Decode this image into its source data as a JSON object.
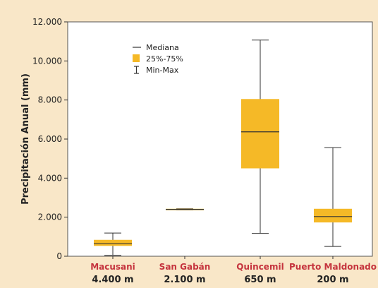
{
  "colors": {
    "background": "#f9e7c8",
    "plot_area": "#ffffff",
    "box_fill": "#f5b927",
    "category_label": "#c5343e",
    "text": "#222222",
    "line": "#333333"
  },
  "legend": {
    "median_label": "Mediana",
    "iqr_label": "25%-75%",
    "range_label": "Min-Max"
  },
  "chart_data": {
    "type": "box",
    "ylabel": "Precipitación Anual (mm)",
    "xlabel": "",
    "ylim": [
      0,
      12000
    ],
    "ytick_values": [
      0,
      2000,
      4000,
      6000,
      8000,
      10000,
      12000
    ],
    "ytick_labels": [
      "0",
      "2.000",
      "4.000",
      "6.000",
      "8.000",
      "10.000",
      "12.000"
    ],
    "grid": false,
    "legend_position": "top-left",
    "categories": [
      "Macusani",
      "San Gabán",
      "Quincemil",
      "Puerto Maldonado"
    ],
    "elevations": [
      "4.400 m",
      "2.100 m",
      "650 m",
      "200 m"
    ],
    "boxes": [
      {
        "min": 50,
        "q1": 530,
        "median": 640,
        "q3": 840,
        "max": 1190
      },
      {
        "min": 2370,
        "q1": 2370,
        "median": 2400,
        "q3": 2430,
        "max": 2430
      },
      {
        "min": 1170,
        "q1": 4500,
        "median": 6370,
        "q3": 8050,
        "max": 11070
      },
      {
        "min": 500,
        "q1": 1730,
        "median": 2030,
        "q3": 2430,
        "max": 5560
      }
    ]
  }
}
